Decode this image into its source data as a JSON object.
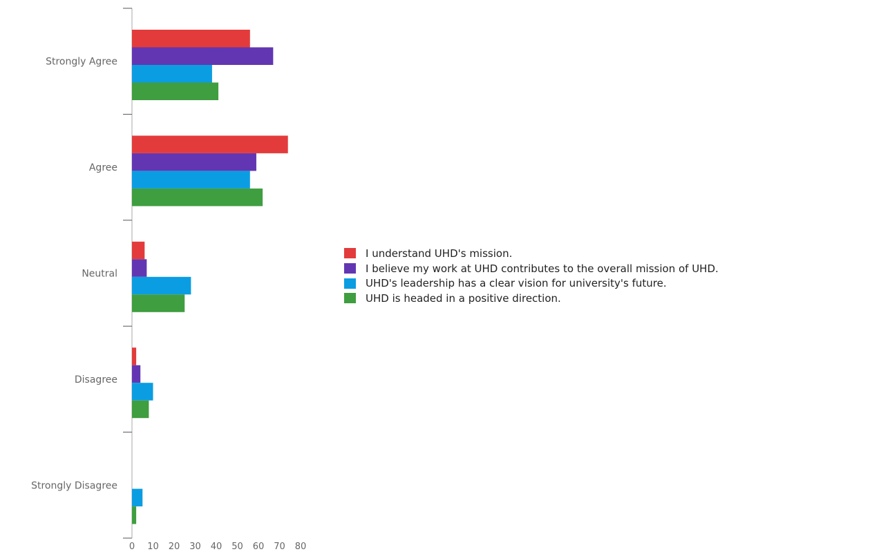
{
  "chart_data": {
    "type": "bar",
    "orientation": "horizontal",
    "categories": [
      "Strongly Agree",
      "Agree",
      "Neutral",
      "Disagree",
      "Strongly Disagree"
    ],
    "series": [
      {
        "name": "I understand UHD's mission.",
        "color": "#e33b3b",
        "values": [
          56,
          74,
          6,
          2,
          0
        ]
      },
      {
        "name": "I believe my work at UHD contributes to the overall mission of UHD.",
        "color": "#6236b3",
        "values": [
          67,
          59,
          7,
          4,
          0
        ]
      },
      {
        "name": "UHD's leadership has a clear vision for university's future.",
        "color": "#0b9de2",
        "values": [
          38,
          56,
          28,
          10,
          5
        ]
      },
      {
        "name": "UHD is headed in a positive direction.",
        "color": "#3f9e3f",
        "values": [
          41,
          62,
          25,
          8,
          2
        ]
      }
    ],
    "xlim": [
      0,
      80
    ],
    "xticks": [
      "0",
      "10",
      "20",
      "30",
      "40",
      "50",
      "60",
      "70",
      "80"
    ],
    "grid": false,
    "legend_position": "right"
  }
}
